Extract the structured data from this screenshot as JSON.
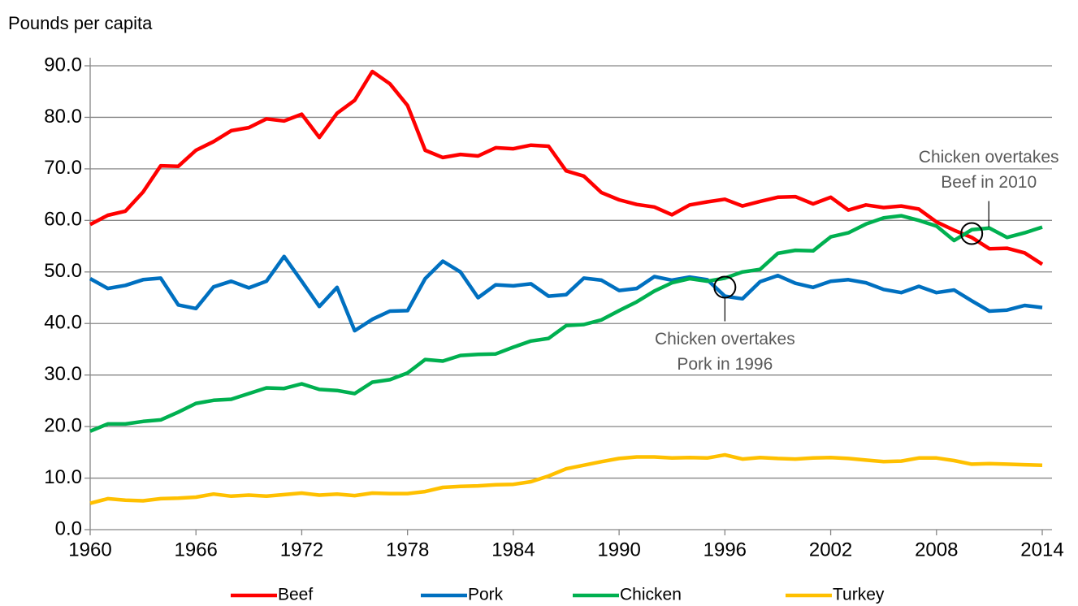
{
  "chart_data": {
    "type": "line",
    "y_label": "Pounds per capita",
    "x": [
      1960,
      1961,
      1962,
      1963,
      1964,
      1965,
      1966,
      1967,
      1968,
      1969,
      1970,
      1971,
      1972,
      1973,
      1974,
      1975,
      1976,
      1977,
      1978,
      1979,
      1980,
      1981,
      1982,
      1983,
      1984,
      1985,
      1986,
      1987,
      1988,
      1989,
      1990,
      1991,
      1992,
      1993,
      1994,
      1995,
      1996,
      1997,
      1998,
      1999,
      2000,
      2001,
      2002,
      2003,
      2004,
      2005,
      2006,
      2007,
      2008,
      2009,
      2010,
      2011,
      2012,
      2013,
      2014
    ],
    "xlim": [
      1960,
      2014
    ],
    "xticks": [
      1960,
      1966,
      1972,
      1978,
      1984,
      1990,
      1996,
      2002,
      2008,
      2014
    ],
    "ylim": [
      0,
      90
    ],
    "yticks": [
      {
        "value": 0,
        "label": "0.0"
      },
      {
        "value": 10,
        "label": "10.0"
      },
      {
        "value": 20,
        "label": "20.0"
      },
      {
        "value": 30,
        "label": "30.0"
      },
      {
        "value": 40,
        "label": "40.0"
      },
      {
        "value": 50,
        "label": "50.0"
      },
      {
        "value": 60,
        "label": "60.0"
      },
      {
        "value": 70,
        "label": "70.0"
      },
      {
        "value": 80,
        "label": "80.0"
      },
      {
        "value": 90,
        "label": "90.0"
      }
    ],
    "grid": true,
    "legend": "bottom",
    "series": [
      {
        "name": "Beef",
        "color": "#ff0000",
        "values": [
          59.2,
          61.0,
          61.8,
          65.5,
          70.6,
          70.5,
          73.6,
          75.3,
          77.4,
          78.0,
          79.7,
          79.3,
          80.6,
          76.1,
          80.8,
          83.3,
          88.9,
          86.5,
          82.3,
          73.6,
          72.2,
          72.8,
          72.5,
          74.1,
          73.9,
          74.6,
          74.4,
          69.6,
          68.6,
          65.4,
          64.0,
          63.1,
          62.6,
          61.1,
          63.0,
          63.6,
          64.1,
          62.8,
          63.7,
          64.5,
          64.6,
          63.2,
          64.5,
          62.0,
          63.0,
          62.5,
          62.8,
          62.2,
          59.7,
          58.1,
          56.7,
          54.5,
          54.6,
          53.7,
          51.5
        ]
      },
      {
        "name": "Pork",
        "color": "#0070c0",
        "values": [
          48.7,
          46.8,
          47.4,
          48.5,
          48.8,
          43.6,
          42.9,
          47.1,
          48.2,
          46.9,
          48.2,
          53.0,
          48.2,
          43.3,
          47.0,
          38.6,
          40.8,
          42.4,
          42.5,
          48.7,
          52.1,
          50.0,
          45.0,
          47.5,
          47.3,
          47.7,
          45.3,
          45.6,
          48.8,
          48.4,
          46.4,
          46.8,
          49.1,
          48.4,
          49.0,
          48.5,
          45.3,
          44.8,
          48.1,
          49.3,
          47.8,
          47.0,
          48.2,
          48.5,
          47.9,
          46.6,
          46.0,
          47.2,
          46.0,
          46.5,
          44.4,
          42.4,
          42.6,
          43.5,
          43.1
        ]
      },
      {
        "name": "Chicken",
        "color": "#00b050",
        "values": [
          19.1,
          20.5,
          20.5,
          21.0,
          21.3,
          22.8,
          24.5,
          25.1,
          25.3,
          26.4,
          27.5,
          27.4,
          28.3,
          27.2,
          27.0,
          26.4,
          28.6,
          29.1,
          30.4,
          33.0,
          32.7,
          33.8,
          34.0,
          34.1,
          35.4,
          36.6,
          37.1,
          39.6,
          39.8,
          40.7,
          42.5,
          44.2,
          46.3,
          47.9,
          48.7,
          48.2,
          48.8,
          50.0,
          50.5,
          53.6,
          54.2,
          54.1,
          56.8,
          57.6,
          59.3,
          60.5,
          60.9,
          60.0,
          58.9,
          56.1,
          58.2,
          58.5,
          56.7,
          57.6,
          58.7
        ]
      },
      {
        "name": "Turkey",
        "color": "#ffc000",
        "values": [
          5.1,
          6.0,
          5.7,
          5.6,
          6.0,
          6.1,
          6.3,
          6.9,
          6.5,
          6.7,
          6.5,
          6.8,
          7.1,
          6.7,
          6.9,
          6.6,
          7.1,
          7.0,
          7.0,
          7.4,
          8.2,
          8.4,
          8.5,
          8.7,
          8.8,
          9.3,
          10.4,
          11.8,
          12.5,
          13.2,
          13.8,
          14.1,
          14.1,
          13.9,
          14.0,
          13.9,
          14.5,
          13.7,
          14.0,
          13.8,
          13.7,
          13.9,
          14.0,
          13.8,
          13.5,
          13.2,
          13.3,
          13.9,
          13.9,
          13.4,
          12.7,
          12.8,
          12.7,
          12.6,
          12.5
        ]
      }
    ],
    "annotations": [
      {
        "text": [
          "Chicken overtakes",
          "Beef in 2010"
        ]
      },
      {
        "text": [
          "Chicken overtakes",
          "Pork in 1996"
        ]
      }
    ]
  }
}
